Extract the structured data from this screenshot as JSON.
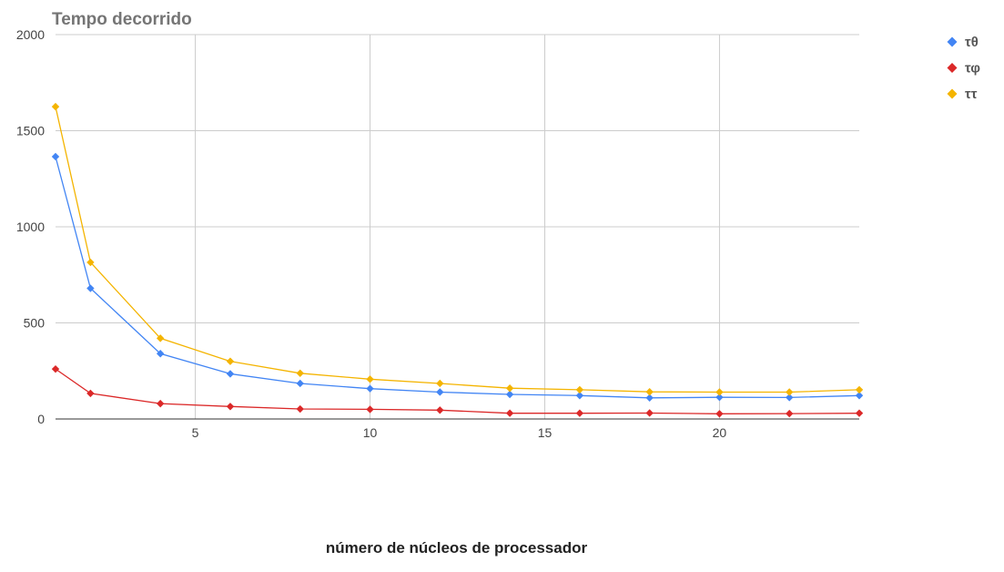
{
  "chart_data": {
    "type": "line",
    "title": "Tempo decorrido",
    "xlabel": "número de núcleos de processador",
    "ylabel": "",
    "xlim": [
      1,
      24
    ],
    "ylim": [
      0,
      2000
    ],
    "x_ticks": [
      5,
      10,
      15,
      20
    ],
    "y_ticks": [
      0,
      500,
      1000,
      1500,
      2000
    ],
    "grid": true,
    "legend_position": "right",
    "marker": "diamond",
    "x": [
      1,
      2,
      4,
      6,
      8,
      10,
      12,
      14,
      16,
      18,
      20,
      22,
      24
    ],
    "series": [
      {
        "name": "τθ",
        "color": "#4285f4",
        "values": [
          1365,
          680,
          340,
          235,
          185,
          158,
          140,
          128,
          122,
          110,
          113,
          112,
          122
        ]
      },
      {
        "name": "τφ",
        "color": "#db2828",
        "values": [
          260,
          133,
          80,
          65,
          52,
          50,
          46,
          30,
          30,
          31,
          27,
          28,
          30
        ]
      },
      {
        "name": "ττ",
        "color": "#f4b400",
        "values": [
          1625,
          815,
          420,
          300,
          238,
          207,
          185,
          160,
          152,
          141,
          140,
          140,
          152
        ]
      }
    ]
  }
}
